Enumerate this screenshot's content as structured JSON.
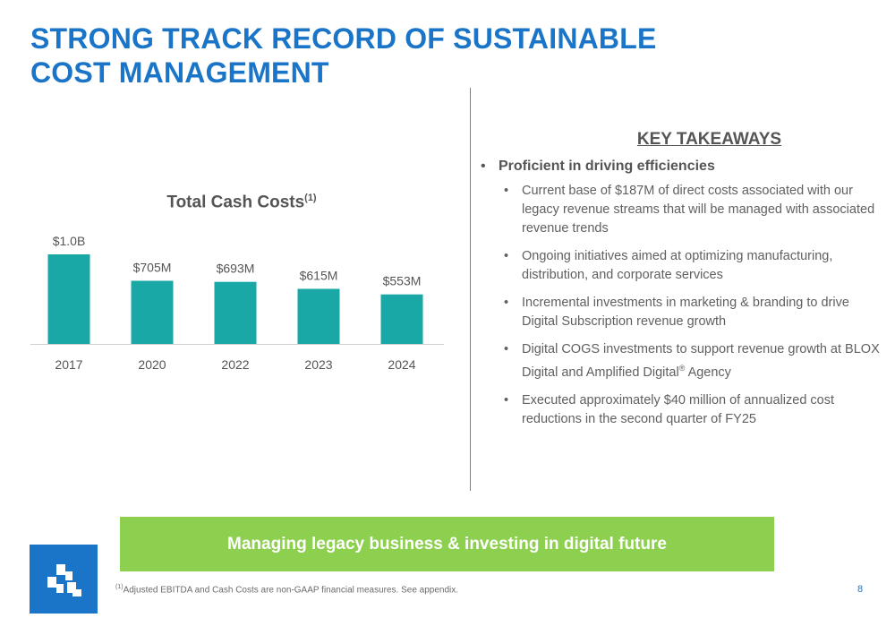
{
  "title": {
    "line1": "STRONG TRACK RECORD OF SUSTAINABLE",
    "line2": "COST MANAGEMENT"
  },
  "chart_data": {
    "type": "bar",
    "title": "Total Cash Costs",
    "title_sup": "(1)",
    "categories": [
      "2017",
      "2020",
      "2022",
      "2023",
      "2024"
    ],
    "values": [
      1000,
      705,
      693,
      615,
      553
    ],
    "value_labels": [
      "$1.0B",
      "$705M",
      "$693M",
      "$615M",
      "$553M"
    ],
    "units": "$M",
    "ylim": [
      0,
      1000
    ],
    "bar_color": "#1aa8a6",
    "grid": false,
    "legend": "none"
  },
  "takeaways": {
    "heading": "KEY TAKEAWAYS",
    "main_bullet": "Proficient in driving efficiencies",
    "items": [
      "Current base of $187M of direct costs associated with our legacy revenue streams that will be managed with associated revenue trends",
      "Ongoing initiatives aimed at optimizing manufacturing, distribution, and corporate services",
      "Incremental investments in marketing & branding to drive Digital Subscription revenue growth",
      "Digital COGS investments to support revenue growth at BLOX Digital and Amplified Digital® Agency",
      "Executed approximately $40 million of annualized cost reductions in the second quarter of FY25"
    ]
  },
  "banner": {
    "text": "Managing legacy business & investing in digital future"
  },
  "footnote": {
    "sup": "(1)",
    "text": "Adjusted EBITDA and Cash Costs are non-GAAP financial measures. See appendix."
  },
  "page_number": "8",
  "colors": {
    "accent_blue": "#1a75c9",
    "banner_green": "#8dcf4e",
    "bar_teal": "#1aa8a6"
  },
  "logo": {
    "icon": "company-logo-icon"
  }
}
